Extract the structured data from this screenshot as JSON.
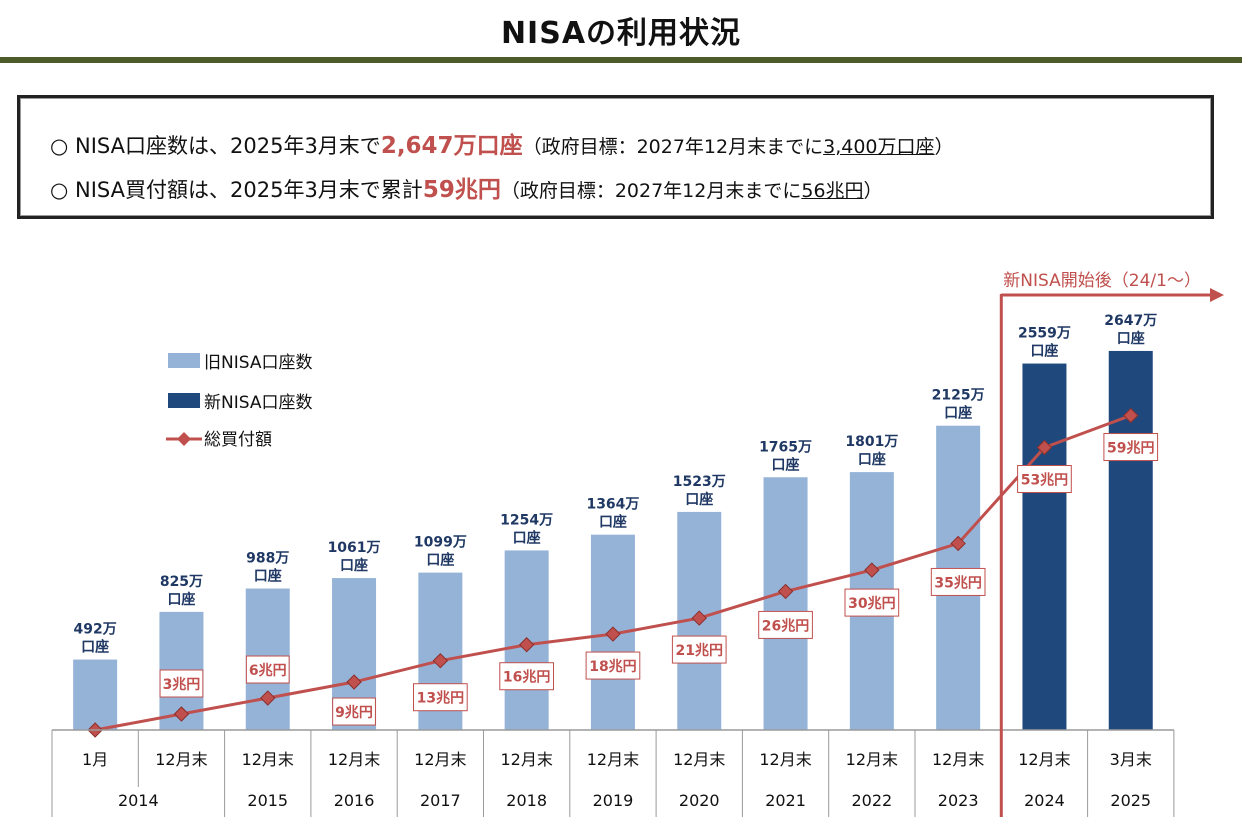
{
  "page": {
    "title": "NISAの利用状況"
  },
  "summary": {
    "line1": {
      "marker": "○",
      "text": "NISA口座数は、2025年3月末で",
      "highlight": "2,647万口座",
      "note_prefix": "（政府目標：2027年12月末までに",
      "note_target": "3,400万口座",
      "note_suffix": "）"
    },
    "line2": {
      "marker": "○",
      "text": "NISA買付額は、2025年3月末で累計",
      "highlight": "59兆円",
      "note_prefix": "（政府目標：2027年12月末までに",
      "note_target": "56兆円",
      "note_suffix": "）"
    }
  },
  "chart_data": {
    "type": "bar",
    "legend": [
      "旧NISA口座数",
      "新NISA口座数",
      "総買付額"
    ],
    "legend_position": "top-left",
    "new_nisa_label": "新NISA開始後（24/1～）",
    "categories": [
      {
        "month": "1月",
        "year": "2014"
      },
      {
        "month": "12月末",
        "year": ""
      },
      {
        "month": "12月末",
        "year": "2015"
      },
      {
        "month": "12月末",
        "year": "2016"
      },
      {
        "month": "12月末",
        "year": "2017"
      },
      {
        "month": "12月末",
        "year": "2018"
      },
      {
        "month": "12月末",
        "year": "2019"
      },
      {
        "month": "12月末",
        "year": "2020"
      },
      {
        "month": "12月末",
        "year": "2021"
      },
      {
        "month": "12月末",
        "year": "2022"
      },
      {
        "month": "12月末",
        "year": "2023"
      },
      {
        "month": "12月末",
        "year": "2024"
      },
      {
        "month": "3月末",
        "year": "2025"
      }
    ],
    "series": [
      {
        "name": "旧NISA口座数",
        "kind": "bar",
        "color": "#95b3d7",
        "values": [
          492,
          825,
          988,
          1061,
          1099,
          1254,
          1364,
          1523,
          1765,
          1801,
          2125,
          null,
          null
        ],
        "labels": [
          "492万",
          "825万",
          "988万",
          "1061万",
          "1099万",
          "1254万",
          "1364万",
          "1523万",
          "1765万",
          "1801万",
          "2125万",
          "",
          ""
        ]
      },
      {
        "name": "新NISA口座数",
        "kind": "bar",
        "color": "#1f497d",
        "values": [
          null,
          null,
          null,
          null,
          null,
          null,
          null,
          null,
          null,
          null,
          null,
          2559,
          2647
        ],
        "labels": [
          "",
          "",
          "",
          "",
          "",
          "",
          "",
          "",
          "",
          "",
          "",
          "2559万",
          "2647万"
        ]
      },
      {
        "name": "総買付額",
        "kind": "line",
        "color": "#c0504d",
        "values": [
          0,
          3,
          6,
          9,
          13,
          16,
          18,
          21,
          26,
          30,
          35,
          53,
          59
        ],
        "labels": [
          "",
          "3兆円",
          "6兆円",
          "9兆円",
          "13兆円",
          "16兆円",
          "18兆円",
          "21兆円",
          "26兆円",
          "30兆円",
          "35兆円",
          "53兆円",
          "59兆円"
        ]
      }
    ],
    "bar_label_suffix": "口座",
    "colors": {
      "old_bar": "#95b3d7",
      "new_bar": "#1f497d",
      "line": "#c0504d",
      "bar_label": "#1f3864",
      "axis": "#9a9a9a"
    }
  }
}
